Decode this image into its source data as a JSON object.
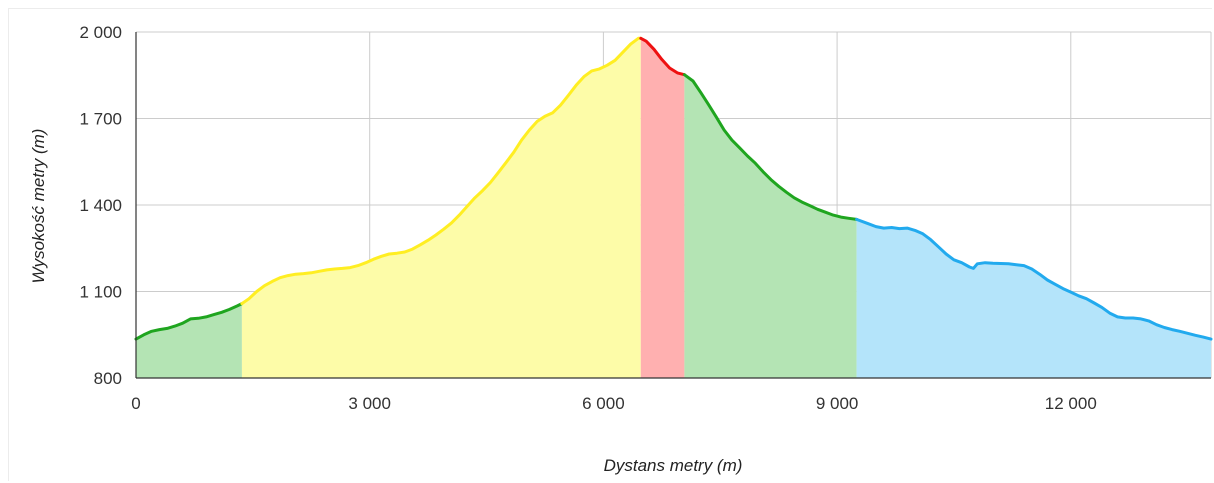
{
  "chart_data": {
    "type": "area",
    "title": "",
    "xlabel": "Dystans metry (m)",
    "ylabel": "Wysokość metry (m)",
    "xlim": [
      0,
      13800
    ],
    "ylim": [
      800,
      2000
    ],
    "x_ticks": [
      0,
      3000,
      6000,
      9000,
      12000
    ],
    "x_tick_labels": [
      "0",
      "3 000",
      "6 000",
      "9 000",
      "12 000"
    ],
    "y_ticks": [
      800,
      1100,
      1400,
      1700,
      2000
    ],
    "y_tick_labels": [
      "800",
      "1 100",
      "1 400",
      "1 700",
      "2 000"
    ],
    "grid": true,
    "legend": "none",
    "colors": {
      "green_line": "#1fa51f",
      "green_fill": "#b4e4b4",
      "yellow_line": "#ffee22",
      "yellow_fill": "#fdfca8",
      "red_line": "#ee1111",
      "red_fill": "#ffb0b0",
      "blue_line": "#22aaee",
      "blue_fill": "#b4e4fa"
    },
    "segments": [
      {
        "color": "green",
        "points": [
          [
            0,
            935
          ],
          [
            100,
            950
          ],
          [
            200,
            962
          ],
          [
            300,
            968
          ],
          [
            400,
            972
          ],
          [
            500,
            980
          ],
          [
            600,
            990
          ],
          [
            700,
            1005
          ],
          [
            800,
            1007
          ],
          [
            900,
            1012
          ],
          [
            1000,
            1020
          ],
          [
            1100,
            1028
          ],
          [
            1200,
            1038
          ],
          [
            1300,
            1050
          ],
          [
            1360,
            1058
          ]
        ]
      },
      {
        "color": "yellow",
        "points": [
          [
            1360,
            1058
          ],
          [
            1450,
            1075
          ],
          [
            1550,
            1100
          ],
          [
            1650,
            1120
          ],
          [
            1750,
            1135
          ],
          [
            1850,
            1148
          ],
          [
            1950,
            1155
          ],
          [
            2050,
            1160
          ],
          [
            2150,
            1162
          ],
          [
            2250,
            1165
          ],
          [
            2350,
            1170
          ],
          [
            2450,
            1175
          ],
          [
            2550,
            1178
          ],
          [
            2650,
            1180
          ],
          [
            2750,
            1183
          ],
          [
            2850,
            1190
          ],
          [
            2950,
            1200
          ],
          [
            3050,
            1212
          ],
          [
            3150,
            1222
          ],
          [
            3250,
            1230
          ],
          [
            3350,
            1233
          ],
          [
            3450,
            1237
          ],
          [
            3550,
            1247
          ],
          [
            3650,
            1262
          ],
          [
            3750,
            1278
          ],
          [
            3850,
            1296
          ],
          [
            3950,
            1316
          ],
          [
            4050,
            1338
          ],
          [
            4150,
            1365
          ],
          [
            4250,
            1395
          ],
          [
            4350,
            1425
          ],
          [
            4450,
            1450
          ],
          [
            4550,
            1478
          ],
          [
            4650,
            1512
          ],
          [
            4750,
            1547
          ],
          [
            4850,
            1583
          ],
          [
            4950,
            1625
          ],
          [
            5050,
            1660
          ],
          [
            5150,
            1690
          ],
          [
            5250,
            1708
          ],
          [
            5350,
            1720
          ],
          [
            5450,
            1746
          ],
          [
            5550,
            1780
          ],
          [
            5650,
            1815
          ],
          [
            5750,
            1845
          ],
          [
            5850,
            1865
          ],
          [
            5950,
            1872
          ],
          [
            6050,
            1885
          ],
          [
            6150,
            1902
          ],
          [
            6250,
            1930
          ],
          [
            6350,
            1958
          ],
          [
            6450,
            1978
          ],
          [
            6480,
            1978
          ]
        ]
      },
      {
        "color": "red",
        "points": [
          [
            6480,
            1978
          ],
          [
            6550,
            1968
          ],
          [
            6650,
            1940
          ],
          [
            6750,
            1905
          ],
          [
            6850,
            1875
          ],
          [
            6950,
            1858
          ],
          [
            7040,
            1852
          ]
        ]
      },
      {
        "color": "green",
        "points": [
          [
            7040,
            1852
          ],
          [
            7150,
            1830
          ],
          [
            7250,
            1790
          ],
          [
            7350,
            1748
          ],
          [
            7450,
            1705
          ],
          [
            7550,
            1660
          ],
          [
            7650,
            1625
          ],
          [
            7750,
            1598
          ],
          [
            7850,
            1570
          ],
          [
            7950,
            1545
          ],
          [
            8050,
            1515
          ],
          [
            8150,
            1488
          ],
          [
            8250,
            1465
          ],
          [
            8350,
            1444
          ],
          [
            8450,
            1425
          ],
          [
            8550,
            1410
          ],
          [
            8650,
            1398
          ],
          [
            8750,
            1385
          ],
          [
            8850,
            1375
          ],
          [
            8950,
            1365
          ],
          [
            9050,
            1358
          ],
          [
            9150,
            1354
          ],
          [
            9250,
            1350
          ]
        ]
      },
      {
        "color": "blue",
        "points": [
          [
            9250,
            1350
          ],
          [
            9400,
            1335
          ],
          [
            9500,
            1325
          ],
          [
            9600,
            1320
          ],
          [
            9700,
            1322
          ],
          [
            9800,
            1318
          ],
          [
            9900,
            1320
          ],
          [
            10000,
            1312
          ],
          [
            10100,
            1300
          ],
          [
            10200,
            1280
          ],
          [
            10300,
            1255
          ],
          [
            10400,
            1230
          ],
          [
            10500,
            1210
          ],
          [
            10600,
            1200
          ],
          [
            10700,
            1185
          ],
          [
            10750,
            1180
          ],
          [
            10800,
            1196
          ],
          [
            10900,
            1200
          ],
          [
            11000,
            1198
          ],
          [
            11100,
            1197
          ],
          [
            11200,
            1196
          ],
          [
            11300,
            1193
          ],
          [
            11400,
            1190
          ],
          [
            11500,
            1178
          ],
          [
            11600,
            1160
          ],
          [
            11700,
            1140
          ],
          [
            11800,
            1125
          ],
          [
            11900,
            1110
          ],
          [
            12000,
            1098
          ],
          [
            12100,
            1085
          ],
          [
            12200,
            1075
          ],
          [
            12300,
            1060
          ],
          [
            12400,
            1045
          ],
          [
            12500,
            1025
          ],
          [
            12600,
            1012
          ],
          [
            12700,
            1008
          ],
          [
            12800,
            1008
          ],
          [
            12900,
            1005
          ],
          [
            13000,
            998
          ],
          [
            13100,
            985
          ],
          [
            13200,
            975
          ],
          [
            13300,
            968
          ],
          [
            13400,
            962
          ],
          [
            13500,
            955
          ],
          [
            13600,
            948
          ],
          [
            13700,
            942
          ],
          [
            13800,
            935
          ]
        ]
      }
    ]
  }
}
